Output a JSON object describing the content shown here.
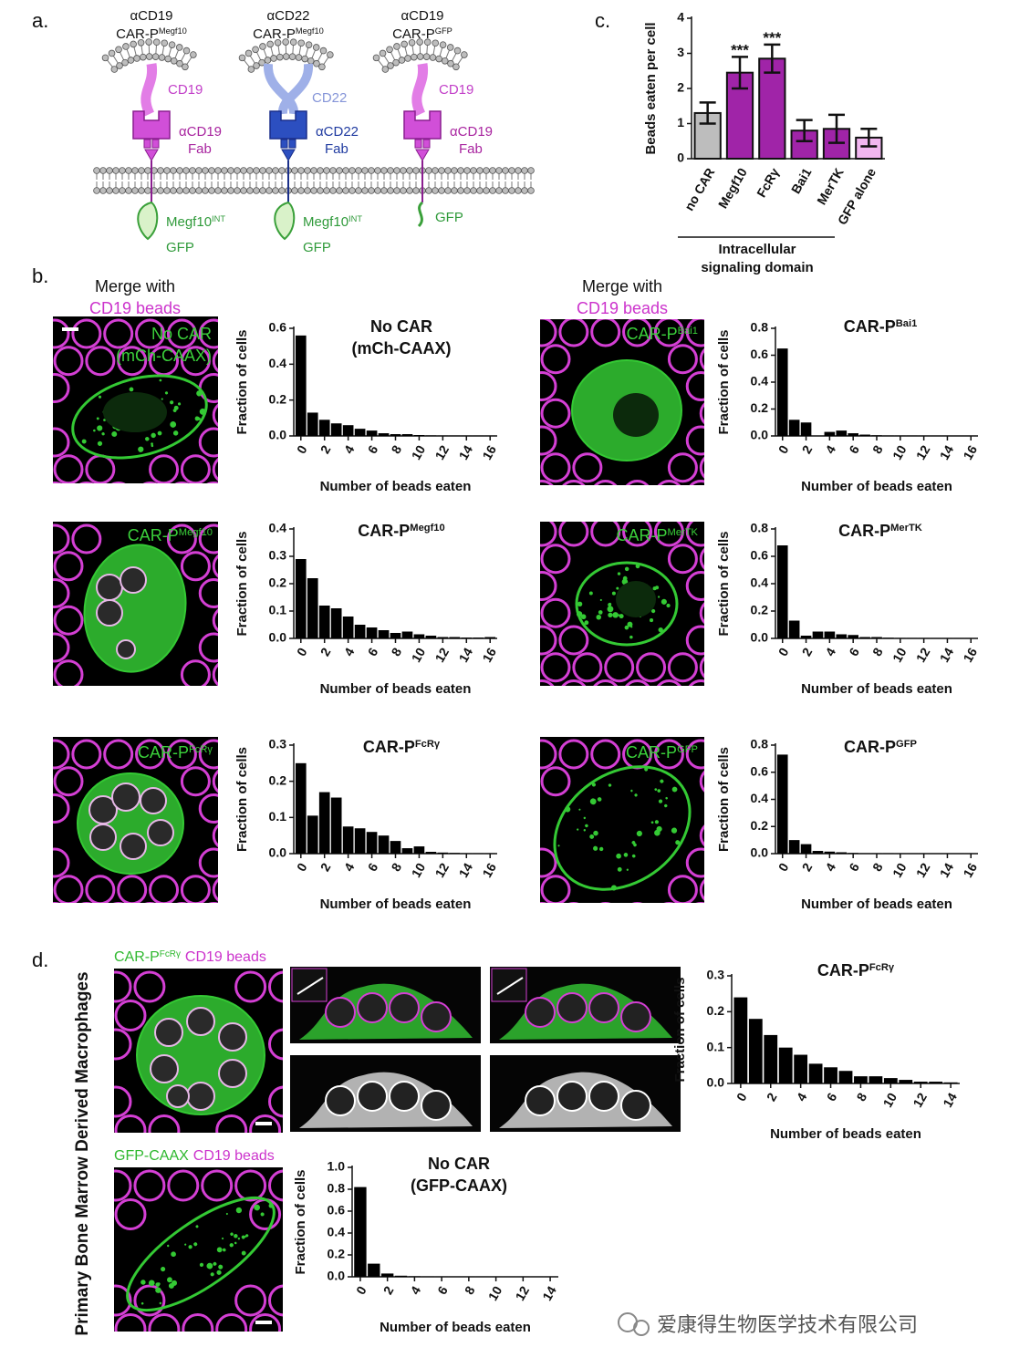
{
  "panel_labels": [
    "a.",
    "b.",
    "c.",
    "d."
  ],
  "diagram": {
    "constructs": [
      {
        "antibody": "αCD19",
        "name": "CAR-P",
        "name_sup": "Megf10",
        "antigen": "CD19",
        "fab": [
          "αCD19",
          "Fab"
        ],
        "signal": "Megf10",
        "signal_sup": "INT",
        "reporter": "GFP"
      },
      {
        "antibody": "αCD22",
        "name": "CAR-P",
        "name_sup": "Megf10",
        "antigen": "CD22",
        "fab": [
          "αCD22",
          "Fab"
        ],
        "signal": "Megf10",
        "signal_sup": "INT",
        "reporter": "GFP"
      },
      {
        "antibody": "αCD19",
        "name": "CAR-P",
        "name_sup": "GFP",
        "antigen": "CD19",
        "fab": [
          "αCD19",
          "Fab"
        ],
        "reporter": "GFP"
      }
    ]
  },
  "panel_b": {
    "headers": [
      [
        "Merge with",
        "CD19 beads"
      ],
      [
        "Merge with",
        "CD19 beads"
      ]
    ],
    "image_labels": [
      {
        "lines": [
          "No CAR",
          "(mCh-CAAX)"
        ]
      },
      {
        "text": "CAR-P",
        "sup": "Bai1"
      },
      {
        "text": "CAR-P",
        "sup": "Megf10"
      },
      {
        "text": "CAR-P",
        "sup": "MerTK"
      },
      {
        "text": "CAR-P",
        "sup": "FcRγ"
      },
      {
        "text": "CAR-P",
        "sup": "GFP"
      }
    ]
  },
  "panel_d": {
    "side_label": "Primary Bone Marrow Derived Macrophages",
    "image_labels": [
      {
        "text": "CAR-P",
        "sup": "FcRγ",
        "beads": "CD19 beads"
      },
      {
        "text": "GFP-CAAX",
        "beads": "CD19 beads"
      }
    ]
  },
  "watermark": "爱康得生物医学技术有限公司",
  "chart_data": [
    {
      "type": "bar",
      "ylabel": "Beads eaten per cell",
      "xlabel_lines": [
        "Intracellular",
        "signaling domain"
      ],
      "categories": [
        "no CAR",
        "Megf10",
        "FcRγ",
        "Bai1",
        "MerTK",
        "GFP alone"
      ],
      "values": [
        1.3,
        2.45,
        2.85,
        0.8,
        0.85,
        0.6
      ],
      "errors": [
        0.3,
        0.45,
        0.4,
        0.3,
        0.4,
        0.25
      ],
      "colors": [
        "#bdbdbd",
        "#a024a8",
        "#a024a8",
        "#a024a8",
        "#a024a8",
        "#f2b6f0"
      ],
      "significance": [
        null,
        "***",
        "***",
        null,
        null,
        null
      ],
      "ylim": [
        0,
        4
      ],
      "yticks": [
        0,
        1,
        2,
        3,
        4
      ]
    },
    {
      "type": "histogram",
      "title_lines": [
        "No CAR",
        "(mCh-CAAX)"
      ],
      "ylabel": "Fraction of cells",
      "xlabel": "Number of beads eaten",
      "color": "#000000",
      "x": [
        0,
        1,
        2,
        3,
        4,
        5,
        6,
        7,
        8,
        9,
        10,
        11,
        12,
        13,
        14,
        15,
        16
      ],
      "values": [
        0.56,
        0.13,
        0.09,
        0.07,
        0.06,
        0.04,
        0.03,
        0.015,
        0.01,
        0.01,
        0.005,
        0.003,
        0.002,
        0.002,
        0.001,
        0.001,
        0.001
      ],
      "xlim": [
        -0.6,
        16.6
      ],
      "xticks": [
        0,
        2,
        4,
        6,
        8,
        10,
        12,
        14,
        16
      ],
      "ylim": [
        0,
        0.6
      ],
      "yticks": [
        {
          "value": 0,
          "label": "0.0"
        },
        0.2,
        0.4,
        0.6
      ]
    },
    {
      "type": "histogram",
      "title": "CAR-P",
      "title_sup": "Bai1",
      "ylabel": "Fraction of cells",
      "xlabel": "Number of beads eaten",
      "color": "#000000",
      "x": [
        0,
        1,
        2,
        3,
        4,
        5,
        6,
        7,
        8,
        9,
        10,
        11,
        12,
        13,
        14,
        15,
        16
      ],
      "values": [
        0.65,
        0.12,
        0.1,
        0.0,
        0.03,
        0.04,
        0.02,
        0.01,
        0.005,
        0.003,
        0.002,
        0.002,
        0.001,
        0.001,
        0.001,
        0.001,
        0.001
      ],
      "xlim": [
        -0.6,
        16.6
      ],
      "xticks": [
        0,
        2,
        4,
        6,
        8,
        10,
        12,
        14,
        16
      ],
      "ylim": [
        0,
        0.8
      ],
      "yticks": [
        {
          "value": 0,
          "label": "0.0"
        },
        0.2,
        0.4,
        0.6,
        0.8
      ]
    },
    {
      "type": "histogram",
      "title": "CAR-P",
      "title_sup": "Megf10",
      "ylabel": "Fraction of cells",
      "xlabel": "Number of beads eaten",
      "color": "#000000",
      "x": [
        0,
        1,
        2,
        3,
        4,
        5,
        6,
        7,
        8,
        9,
        10,
        11,
        12,
        13,
        14,
        15,
        16
      ],
      "values": [
        0.29,
        0.22,
        0.12,
        0.11,
        0.08,
        0.05,
        0.04,
        0.03,
        0.02,
        0.025,
        0.015,
        0.01,
        0.005,
        0.005,
        0.003,
        0.003,
        0.005
      ],
      "xlim": [
        -0.6,
        16.6
      ],
      "xticks": [
        0,
        2,
        4,
        6,
        8,
        10,
        12,
        14,
        16
      ],
      "ylim": [
        0,
        0.4
      ],
      "yticks": [
        {
          "value": 0,
          "label": "0.0"
        },
        0.1,
        0.2,
        0.3,
        0.4
      ]
    },
    {
      "type": "histogram",
      "title": "CAR-P",
      "title_sup": "MerTK",
      "ylabel": "Fraction of cells",
      "xlabel": "Number of beads eaten",
      "color": "#000000",
      "x": [
        0,
        1,
        2,
        3,
        4,
        5,
        6,
        7,
        8,
        9,
        10,
        11,
        12,
        13,
        14,
        15,
        16
      ],
      "values": [
        0.68,
        0.13,
        0.02,
        0.05,
        0.05,
        0.03,
        0.025,
        0.01,
        0.01,
        0.005,
        0.003,
        0.002,
        0.002,
        0.001,
        0.001,
        0.001,
        0.001
      ],
      "xlim": [
        -0.6,
        16.6
      ],
      "xticks": [
        0,
        2,
        4,
        6,
        8,
        10,
        12,
        14,
        16
      ],
      "ylim": [
        0,
        0.8
      ],
      "yticks": [
        {
          "value": 0,
          "label": "0.0"
        },
        0.2,
        0.4,
        0.6,
        0.8
      ]
    },
    {
      "type": "histogram",
      "title": "CAR-P",
      "title_sup": "FcRγ",
      "ylabel": "Fraction of cells",
      "xlabel": "Number of beads eaten",
      "color": "#000000",
      "x": [
        0,
        1,
        2,
        3,
        4,
        5,
        6,
        7,
        8,
        9,
        10,
        11,
        12,
        13,
        14,
        15,
        16
      ],
      "values": [
        0.25,
        0.105,
        0.17,
        0.155,
        0.075,
        0.07,
        0.06,
        0.05,
        0.035,
        0.015,
        0.02,
        0.005,
        0.003,
        0.002,
        0.001,
        0.001,
        0.001
      ],
      "xlim": [
        -0.6,
        16.6
      ],
      "xticks": [
        0,
        2,
        4,
        6,
        8,
        10,
        12,
        14,
        16
      ],
      "ylim": [
        0,
        0.3
      ],
      "yticks": [
        {
          "value": 0,
          "label": "0.0"
        },
        0.1,
        0.2,
        0.3
      ]
    },
    {
      "type": "histogram",
      "title": "CAR-P",
      "title_sup": "GFP",
      "ylabel": "Fraction of cells",
      "xlabel": "Number of beads eaten",
      "color": "#000000",
      "x": [
        0,
        1,
        2,
        3,
        4,
        5,
        6,
        7,
        8,
        9,
        10,
        11,
        12,
        13,
        14,
        15,
        16
      ],
      "values": [
        0.73,
        0.1,
        0.07,
        0.02,
        0.015,
        0.01,
        0.005,
        0.003,
        0.002,
        0.002,
        0.001,
        0.001,
        0.001,
        0.001,
        0.001,
        0.001,
        0.001
      ],
      "xlim": [
        -0.6,
        16.6
      ],
      "xticks": [
        0,
        2,
        4,
        6,
        8,
        10,
        12,
        14,
        16
      ],
      "ylim": [
        0,
        0.8
      ],
      "yticks": [
        {
          "value": 0,
          "label": "0.0"
        },
        0.2,
        0.4,
        0.6,
        0.8
      ]
    },
    {
      "type": "histogram",
      "title": "CAR-P",
      "title_sup": "FcRγ",
      "ylabel": "Fraction of cells",
      "xlabel": "Number of beads eaten",
      "color": "#000000",
      "x": [
        0,
        1,
        2,
        3,
        4,
        5,
        6,
        7,
        8,
        9,
        10,
        11,
        12,
        13,
        14
      ],
      "values": [
        0.24,
        0.18,
        0.135,
        0.1,
        0.08,
        0.055,
        0.045,
        0.035,
        0.02,
        0.02,
        0.015,
        0.01,
        0.005,
        0.005,
        0.003
      ],
      "xlim": [
        -0.6,
        14.6
      ],
      "xticks": [
        0,
        2,
        4,
        6,
        8,
        10,
        12,
        14
      ],
      "ylim": [
        0,
        0.3
      ],
      "yticks": [
        {
          "value": 0,
          "label": "0.0"
        },
        0.1,
        0.2,
        0.3
      ]
    },
    {
      "type": "histogram",
      "title_lines": [
        "No CAR",
        "(GFP-CAAX)"
      ],
      "ylabel": "Fraction of cells",
      "xlabel": "Number of beads eaten",
      "color": "#000000",
      "x": [
        0,
        1,
        2,
        3,
        4,
        5,
        6,
        7,
        8,
        9,
        10,
        11,
        12,
        13,
        14
      ],
      "values": [
        0.82,
        0.12,
        0.03,
        0.01,
        0.005,
        0.003,
        0.002,
        0.001,
        0.001,
        0.001,
        0.001,
        0.001,
        0.001,
        0.001,
        0.001
      ],
      "xlim": [
        -0.6,
        14.6
      ],
      "xticks": [
        0,
        2,
        4,
        6,
        8,
        10,
        12,
        14
      ],
      "ylim": [
        0,
        1
      ],
      "yticks": [
        {
          "value": 0,
          "label": "0.0"
        },
        0.2,
        0.4,
        0.6,
        0.8,
        {
          "value": 1,
          "label": "1.0"
        }
      ]
    }
  ]
}
